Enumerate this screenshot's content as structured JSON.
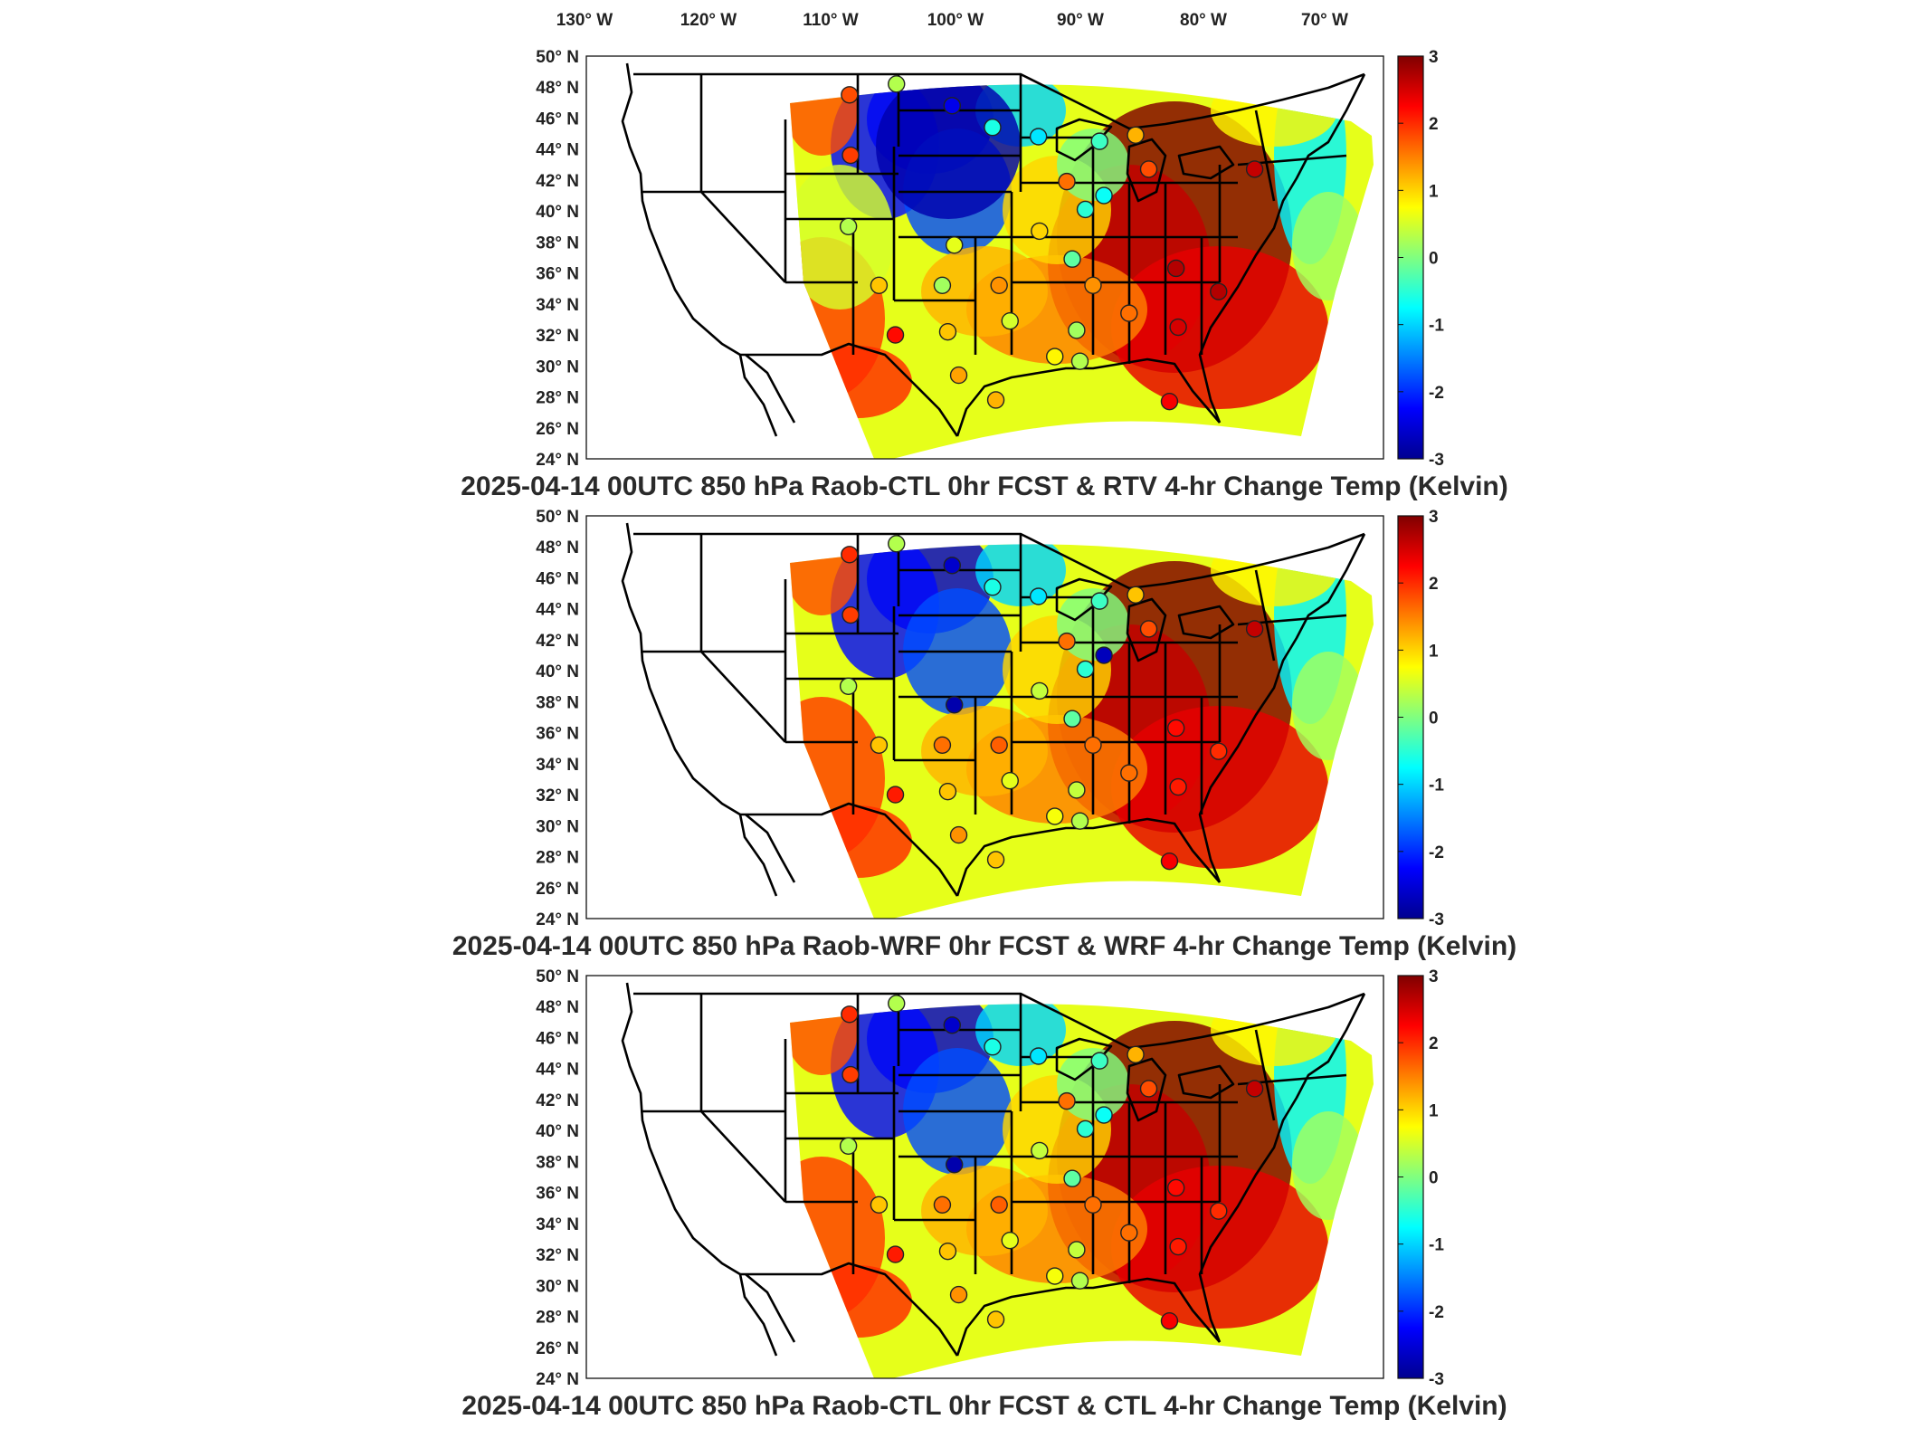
{
  "figure": {
    "lon_labels": [
      "130° W",
      "120° W",
      "110° W",
      "100° W",
      "90° W",
      "80° W",
      "70° W"
    ],
    "lat_labels": [
      "50° N",
      "48° N",
      "46° N",
      "44° N",
      "42° N",
      "40° N",
      "38° N",
      "36° N",
      "34° N",
      "32° N",
      "30° N",
      "28° N",
      "26° N",
      "24° N"
    ],
    "colorbar_ticks": [
      "3",
      "2",
      "1",
      "0",
      "-1",
      "-2",
      "-3"
    ],
    "colormap": [
      "#00008f",
      "#0000ff",
      "#0080ff",
      "#00ffff",
      "#80ff80",
      "#ffff00",
      "#ff8000",
      "#ff0000",
      "#800000"
    ],
    "panels": [
      {
        "id": "rtv",
        "title": "2025-04-14 00UTC 850 hPa Raob-CTL 0hr FCST & RTV 4-hr Change Temp (Kelvin)"
      },
      {
        "id": "wrf",
        "title": "2025-04-14 00UTC 850 hPa Raob-WRF 0hr FCST & WRF 4-hr Change Temp (Kelvin)"
      },
      {
        "id": "ctl",
        "title": "2025-04-14 00UTC 850 hPa Raob-CTL 0hr FCST & CTL 4-hr Change Temp (Kelvin)"
      }
    ],
    "stations": [
      {
        "lon": -110.9,
        "lat": 47.5,
        "v": [
          1.8,
          2.0,
          2.0
        ]
      },
      {
        "lon": -106.6,
        "lat": 48.2,
        "v": [
          0.3,
          0.3,
          0.3
        ]
      },
      {
        "lon": -101.5,
        "lat": 46.8,
        "v": [
          -2.4,
          -2.6,
          -2.6
        ]
      },
      {
        "lon": -97.8,
        "lat": 45.4,
        "v": [
          -0.6,
          -0.6,
          -0.6
        ]
      },
      {
        "lon": -93.6,
        "lat": 44.8,
        "v": [
          -0.9,
          -0.9,
          -0.9
        ]
      },
      {
        "lon": -88.0,
        "lat": 44.5,
        "v": [
          -0.4,
          -0.4,
          -0.4
        ]
      },
      {
        "lon": -84.7,
        "lat": 44.9,
        "v": [
          1.2,
          1.1,
          1.2
        ]
      },
      {
        "lon": -83.5,
        "lat": 42.7,
        "v": [
          1.8,
          1.8,
          1.8
        ]
      },
      {
        "lon": -73.8,
        "lat": 42.7,
        "v": [
          2.6,
          2.6,
          2.6
        ]
      },
      {
        "lon": -110.8,
        "lat": 43.6,
        "v": [
          1.9,
          1.9,
          1.9
        ]
      },
      {
        "lon": -91.0,
        "lat": 41.9,
        "v": [
          1.6,
          1.6,
          1.6
        ]
      },
      {
        "lon": -87.6,
        "lat": 41.0,
        "v": [
          -0.7,
          -2.7,
          -0.7
        ]
      },
      {
        "lon": -89.3,
        "lat": 40.1,
        "v": [
          -0.5,
          -0.5,
          -0.5
        ]
      },
      {
        "lon": -93.5,
        "lat": 38.7,
        "v": [
          1.0,
          0.4,
          0.4
        ]
      },
      {
        "lon": -111.0,
        "lat": 39.0,
        "v": [
          0.3,
          0.3,
          0.3
        ]
      },
      {
        "lon": -101.3,
        "lat": 37.8,
        "v": [
          0.6,
          -2.8,
          -2.8
        ]
      },
      {
        "lon": -90.5,
        "lat": 36.9,
        "v": [
          -0.2,
          -0.2,
          -0.2
        ]
      },
      {
        "lon": -81.0,
        "lat": 36.3,
        "v": [
          2.7,
          2.2,
          2.2
        ]
      },
      {
        "lon": -108.2,
        "lat": 35.2,
        "v": [
          1.1,
          1.1,
          1.1
        ]
      },
      {
        "lon": -102.4,
        "lat": 35.2,
        "v": [
          0.2,
          1.6,
          1.6
        ]
      },
      {
        "lon": -97.2,
        "lat": 35.2,
        "v": [
          1.4,
          1.7,
          1.7
        ]
      },
      {
        "lon": -88.6,
        "lat": 35.2,
        "v": [
          1.4,
          1.6,
          1.6
        ]
      },
      {
        "lon": -77.1,
        "lat": 34.8,
        "v": [
          2.7,
          2.0,
          2.0
        ]
      },
      {
        "lon": -96.2,
        "lat": 32.9,
        "v": [
          0.5,
          0.6,
          0.6
        ]
      },
      {
        "lon": -90.1,
        "lat": 32.3,
        "v": [
          0.2,
          0.4,
          0.4
        ]
      },
      {
        "lon": -85.3,
        "lat": 33.4,
        "v": [
          1.6,
          1.6,
          1.6
        ]
      },
      {
        "lon": -80.8,
        "lat": 32.5,
        "v": [
          2.5,
          2.1,
          2.1
        ]
      },
      {
        "lon": -101.9,
        "lat": 32.2,
        "v": [
          1.1,
          1.1,
          1.1
        ]
      },
      {
        "lon": -106.7,
        "lat": 32.0,
        "v": [
          2.2,
          2.1,
          2.1
        ]
      },
      {
        "lon": -92.1,
        "lat": 30.6,
        "v": [
          0.8,
          0.7,
          0.7
        ]
      },
      {
        "lon": -89.8,
        "lat": 30.3,
        "v": [
          0.3,
          0.3,
          0.3
        ]
      },
      {
        "lon": -100.9,
        "lat": 29.4,
        "v": [
          1.3,
          1.4,
          1.4
        ]
      },
      {
        "lon": -97.5,
        "lat": 27.8,
        "v": [
          1.2,
          1.1,
          1.1
        ]
      },
      {
        "lon": -81.6,
        "lat": 27.7,
        "v": [
          2.3,
          2.3,
          2.3
        ]
      }
    ]
  }
}
